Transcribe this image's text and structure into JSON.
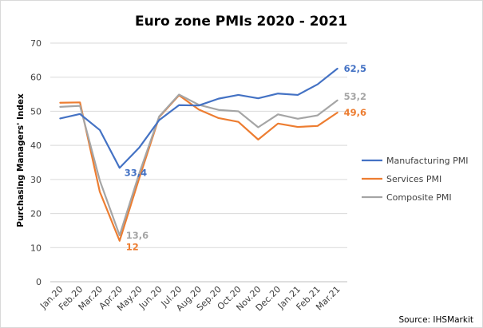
{
  "chart_data": {
    "type": "line",
    "title": "Euro zone PMIs 2020 - 2021",
    "ylabel": "Purchasing Managers' Index",
    "xlabel": "",
    "ylim": [
      0,
      70
    ],
    "yticks": [
      0,
      10,
      20,
      30,
      40,
      50,
      60,
      70
    ],
    "grid": "horizontal",
    "legend_position": "right",
    "source": "Source: IHSMarkit",
    "categories": [
      "Jan.20",
      "Feb.20",
      "Mar.20",
      "Apr.20",
      "May.20",
      "Jun.20",
      "Jul.20",
      "Aug.20",
      "Sep.20",
      "Oct.20",
      "Nov.20",
      "Dec.20",
      "Jan.21",
      "Feb.21",
      "Mar.21"
    ],
    "series": [
      {
        "name": "Manufacturing PMI",
        "color": "#4472c4",
        "values": [
          47.9,
          49.2,
          44.5,
          33.4,
          39.4,
          47.4,
          51.8,
          51.7,
          53.7,
          54.8,
          53.8,
          55.2,
          54.8,
          57.9,
          62.5
        ],
        "labels": [
          {
            "index": 3,
            "text": "33,4"
          },
          {
            "index": 14,
            "text": "62,5"
          }
        ]
      },
      {
        "name": "Services PMI",
        "color": "#ed7d31",
        "values": [
          52.5,
          52.6,
          26.4,
          12.0,
          30.5,
          48.3,
          54.7,
          50.5,
          48.0,
          46.9,
          41.7,
          46.4,
          45.4,
          45.7,
          49.6
        ],
        "labels": [
          {
            "index": 3,
            "text": "12"
          },
          {
            "index": 14,
            "text": "49,6"
          }
        ]
      },
      {
        "name": "Composite PMI",
        "color": "#a5a5a5",
        "values": [
          51.3,
          51.6,
          29.7,
          13.6,
          31.9,
          48.5,
          54.9,
          51.9,
          50.4,
          50.0,
          45.3,
          49.1,
          47.8,
          48.8,
          53.2
        ],
        "labels": [
          {
            "index": 3,
            "text": "13,6"
          },
          {
            "index": 14,
            "text": "53,2"
          }
        ]
      }
    ]
  }
}
